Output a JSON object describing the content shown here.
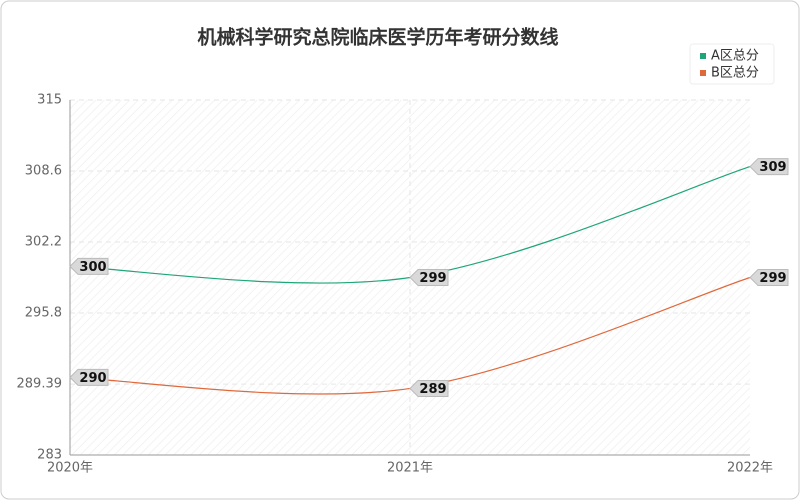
{
  "chart_data": {
    "type": "line",
    "title": "机械科学研究总院临床医学历年考研分数线",
    "categories": [
      "2020年",
      "2021年",
      "2022年"
    ],
    "series": [
      {
        "name": "A区总分",
        "color": "#1fa57a",
        "values": [
          300,
          299,
          309
        ]
      },
      {
        "name": "B区总分",
        "color": "#e0693c",
        "values": [
          290,
          289,
          299
        ]
      }
    ],
    "ylim": [
      283,
      315
    ],
    "yticks": [
      283,
      289.39,
      295.8,
      302.2,
      308.6,
      315
    ],
    "grid": true,
    "legend": "top-right"
  }
}
